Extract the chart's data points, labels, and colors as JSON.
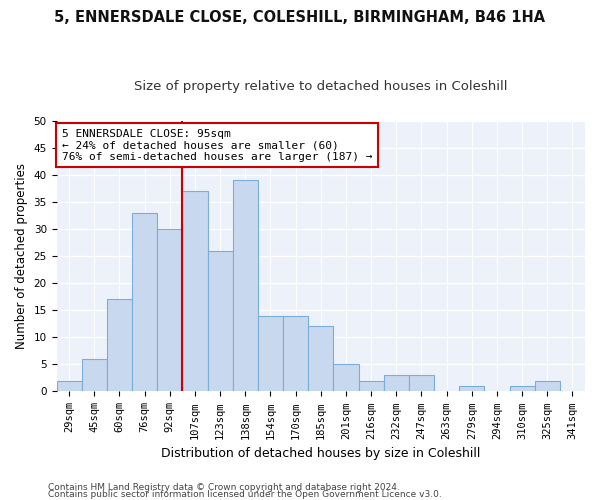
{
  "title1": "5, ENNERSDALE CLOSE, COLESHILL, BIRMINGHAM, B46 1HA",
  "title2": "Size of property relative to detached houses in Coleshill",
  "xlabel": "Distribution of detached houses by size in Coleshill",
  "ylabel": "Number of detached properties",
  "categories": [
    "29sqm",
    "45sqm",
    "60sqm",
    "76sqm",
    "92sqm",
    "107sqm",
    "123sqm",
    "138sqm",
    "154sqm",
    "170sqm",
    "185sqm",
    "201sqm",
    "216sqm",
    "232sqm",
    "247sqm",
    "263sqm",
    "279sqm",
    "294sqm",
    "310sqm",
    "325sqm",
    "341sqm"
  ],
  "values": [
    2,
    6,
    17,
    33,
    30,
    37,
    26,
    39,
    14,
    14,
    12,
    5,
    2,
    3,
    3,
    0,
    1,
    0,
    1,
    2,
    0
  ],
  "bar_color": "#c8d9ef",
  "bar_edge_color": "#7aadda",
  "vline_color": "#cc0000",
  "annotation_text": "5 ENNERSDALE CLOSE: 95sqm\n← 24% of detached houses are smaller (60)\n76% of semi-detached houses are larger (187) →",
  "annotation_box_color": "#ffffff",
  "annotation_box_edge_color": "#cc0000",
  "ylim": [
    0,
    50
  ],
  "yticks": [
    0,
    5,
    10,
    15,
    20,
    25,
    30,
    35,
    40,
    45,
    50
  ],
  "footer1": "Contains HM Land Registry data © Crown copyright and database right 2024.",
  "footer2": "Contains public sector information licensed under the Open Government Licence v3.0.",
  "bg_color": "#edf2fa",
  "grid_color": "#ffffff",
  "fig_bg_color": "#ffffff",
  "title1_fontsize": 10.5,
  "title2_fontsize": 9.5,
  "xlabel_fontsize": 9,
  "ylabel_fontsize": 8.5,
  "tick_fontsize": 7.5,
  "annotation_fontsize": 8,
  "footer_fontsize": 6.5
}
